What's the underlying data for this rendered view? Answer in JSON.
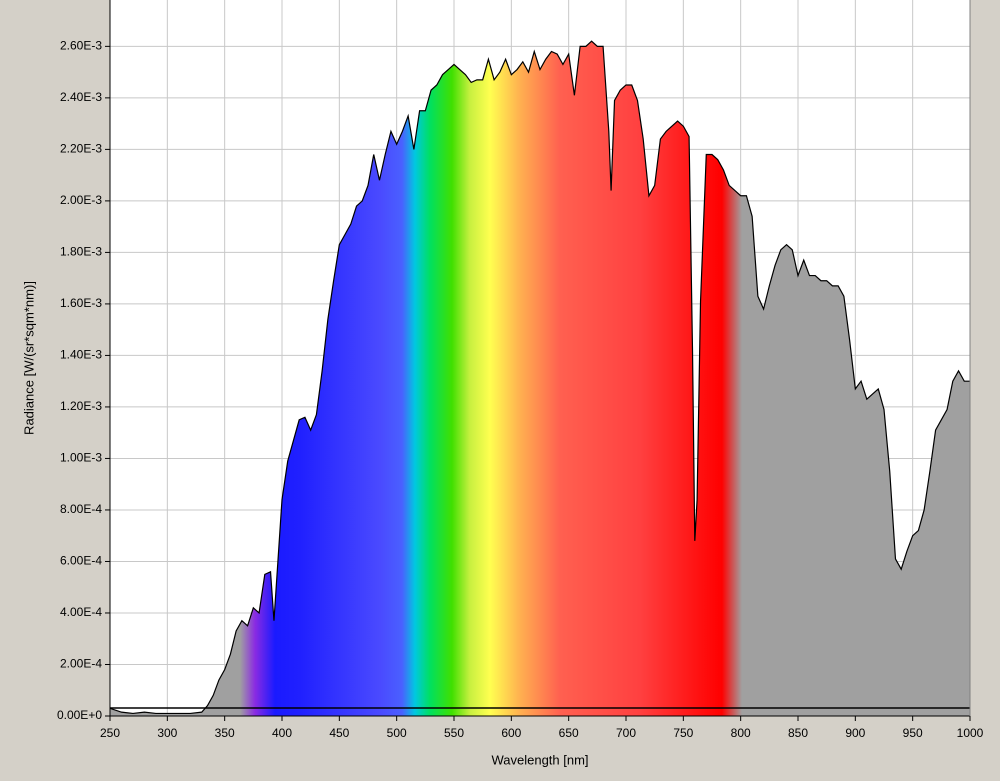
{
  "chart_data": {
    "type": "area",
    "xlabel": "Wavelength [nm]",
    "ylabel": "Radiance [W/(sr*sqm*nm)]",
    "color": "#a0a0a0",
    "line_color": "#000000",
    "grid": true,
    "xlim": [
      250,
      1000
    ],
    "ylim": [
      0,
      0.00278
    ],
    "xticks": [
      250,
      300,
      350,
      400,
      450,
      500,
      550,
      600,
      650,
      700,
      750,
      800,
      850,
      900,
      950,
      1000
    ],
    "yticks": [
      {
        "value": 0,
        "label": "0.00E+0"
      },
      {
        "value": 0.0002,
        "label": "2.00E-4"
      },
      {
        "value": 0.0004,
        "label": "4.00E-4"
      },
      {
        "value": 0.0006,
        "label": "6.00E-4"
      },
      {
        "value": 0.0008,
        "label": "8.00E-4"
      },
      {
        "value": 0.001,
        "label": "1.00E-3"
      },
      {
        "value": 0.0012,
        "label": "1.20E-3"
      },
      {
        "value": 0.0014,
        "label": "1.40E-3"
      },
      {
        "value": 0.0016,
        "label": "1.60E-3"
      },
      {
        "value": 0.0018,
        "label": "1.80E-3"
      },
      {
        "value": 0.002,
        "label": "2.00E-3"
      },
      {
        "value": 0.0022,
        "label": "2.20E-3"
      },
      {
        "value": 0.0024,
        "label": "2.40E-3"
      },
      {
        "value": 0.0026,
        "label": "2.60E-3"
      }
    ],
    "x": [
      250,
      260,
      270,
      280,
      290,
      300,
      310,
      320,
      330,
      335,
      340,
      345,
      350,
      355,
      360,
      365,
      370,
      375,
      380,
      385,
      390,
      393,
      400,
      405,
      410,
      415,
      420,
      425,
      430,
      435,
      440,
      445,
      450,
      455,
      460,
      465,
      470,
      475,
      480,
      485,
      490,
      495,
      500,
      505,
      510,
      515,
      520,
      525,
      530,
      535,
      540,
      545,
      550,
      555,
      560,
      565,
      570,
      575,
      580,
      585,
      590,
      595,
      600,
      605,
      610,
      615,
      620,
      625,
      630,
      635,
      640,
      645,
      650,
      655,
      660,
      665,
      670,
      675,
      680,
      685,
      687,
      690,
      695,
      700,
      705,
      710,
      715,
      720,
      725,
      730,
      735,
      740,
      745,
      750,
      755,
      758,
      760,
      762,
      765,
      770,
      775,
      780,
      785,
      790,
      795,
      800,
      805,
      810,
      815,
      820,
      825,
      830,
      835,
      840,
      845,
      850,
      855,
      860,
      865,
      870,
      875,
      880,
      885,
      890,
      895,
      900,
      905,
      910,
      915,
      920,
      925,
      930,
      935,
      940,
      945,
      950,
      955,
      960,
      965,
      970,
      975,
      980,
      985,
      990,
      995,
      1000
    ],
    "values": [
      3e-05,
      1.5e-05,
      1e-05,
      1.5e-05,
      1e-05,
      1e-05,
      1e-05,
      1e-05,
      1.5e-05,
      4e-05,
      8e-05,
      0.00014,
      0.00018,
      0.00024,
      0.00033,
      0.00037,
      0.00035,
      0.00042,
      0.0004,
      0.00055,
      0.00056,
      0.00037,
      0.00084,
      0.00099,
      0.00107,
      0.00115,
      0.00116,
      0.00111,
      0.00117,
      0.00134,
      0.00154,
      0.00169,
      0.00183,
      0.00187,
      0.00191,
      0.00198,
      0.002,
      0.00206,
      0.00218,
      0.00208,
      0.00218,
      0.00227,
      0.00222,
      0.00227,
      0.00233,
      0.0022,
      0.00235,
      0.00235,
      0.00243,
      0.00245,
      0.00249,
      0.00251,
      0.00253,
      0.00251,
      0.00249,
      0.00246,
      0.00247,
      0.00247,
      0.00255,
      0.00247,
      0.0025,
      0.00255,
      0.00249,
      0.00251,
      0.00254,
      0.0025,
      0.00258,
      0.00251,
      0.00255,
      0.00258,
      0.00257,
      0.00253,
      0.00257,
      0.00241,
      0.0026,
      0.0026,
      0.00262,
      0.0026,
      0.0026,
      0.00227,
      0.00204,
      0.00239,
      0.00243,
      0.00245,
      0.00245,
      0.00239,
      0.00224,
      0.00202,
      0.00206,
      0.00224,
      0.00227,
      0.00229,
      0.00231,
      0.00229,
      0.00225,
      0.00142,
      0.00068,
      0.00084,
      0.00161,
      0.00218,
      0.00218,
      0.00216,
      0.00212,
      0.00206,
      0.00204,
      0.00202,
      0.00202,
      0.00194,
      0.00163,
      0.00158,
      0.00167,
      0.00175,
      0.00181,
      0.00183,
      0.00181,
      0.00171,
      0.00177,
      0.00171,
      0.00171,
      0.00169,
      0.00169,
      0.00167,
      0.00167,
      0.00163,
      0.00146,
      0.00127,
      0.0013,
      0.00123,
      0.00125,
      0.00127,
      0.00119,
      0.00095,
      0.00061,
      0.00057,
      0.00064,
      0.0007,
      0.00072,
      0.0008,
      0.00095,
      0.00111,
      0.00115,
      0.00119,
      0.0013,
      0.00134,
      0.0013,
      0.0013
    ]
  }
}
